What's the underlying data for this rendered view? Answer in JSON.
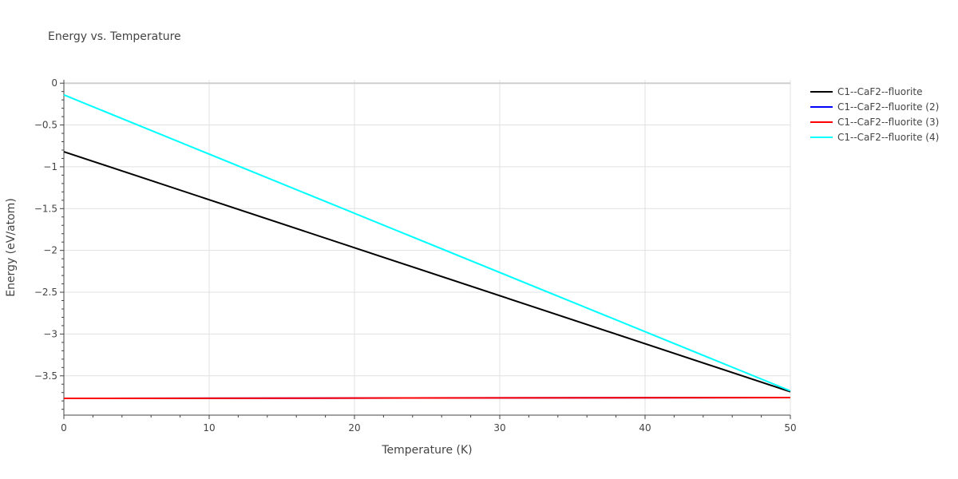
{
  "chart_data": {
    "type": "line",
    "title": "Energy vs. Temperature",
    "xlabel": "Temperature (K)",
    "ylabel": "Energy (eV/atom)",
    "xlim": [
      0,
      50
    ],
    "ylim": [
      -3.97,
      0.04
    ],
    "x_ticks": [
      0,
      10,
      20,
      30,
      40,
      50
    ],
    "y_ticks": [
      0,
      -0.5,
      -1,
      -1.5,
      -2,
      -2.5,
      -3,
      -3.5
    ],
    "x_tick_labels": [
      "0",
      "10",
      "20",
      "30",
      "40",
      "50"
    ],
    "y_tick_labels": [
      "0",
      "−0.5",
      "−1",
      "−1.5",
      "−2",
      "−2.5",
      "−3",
      "−3.5"
    ],
    "grid": true,
    "legend_position": "top-right",
    "series": [
      {
        "name": "C1--CaF2--fluorite",
        "color": "#000000",
        "x": [
          0,
          50
        ],
        "y": [
          -0.82,
          -3.69
        ]
      },
      {
        "name": "C1--CaF2--fluorite (2)",
        "color": "#0000ff",
        "x": [
          0,
          50
        ],
        "y": [
          -3.77,
          -3.76
        ]
      },
      {
        "name": "C1--CaF2--fluorite (3)",
        "color": "#ff0000",
        "x": [
          0,
          50
        ],
        "y": [
          -3.77,
          -3.76
        ]
      },
      {
        "name": "C1--CaF2--fluorite (4)",
        "color": "#00ffff",
        "x": [
          0,
          50
        ],
        "y": [
          -0.14,
          -3.68
        ]
      }
    ]
  }
}
